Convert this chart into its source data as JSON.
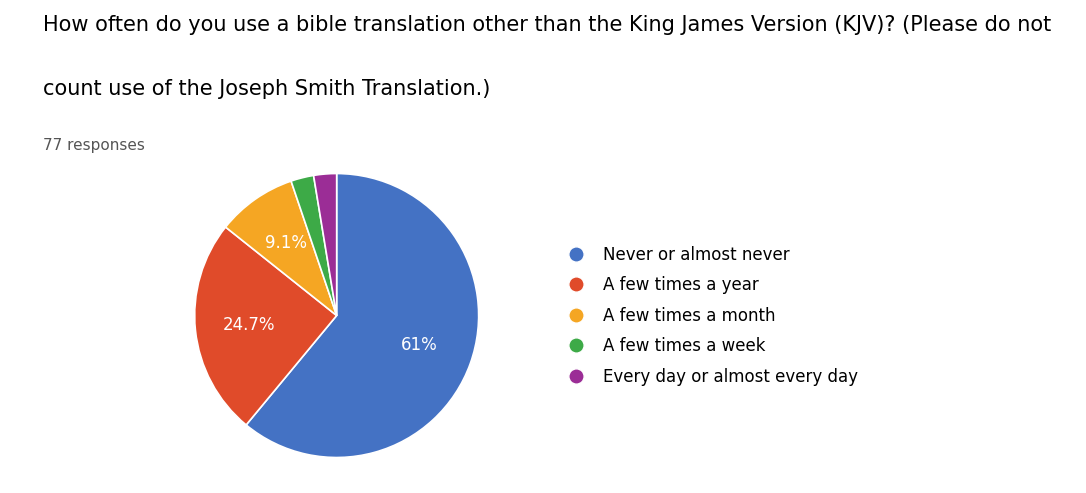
{
  "title_line1": "How often do you use a bible translation other than the King James Version (KJV)? (Please do not",
  "title_line2": "count use of the Joseph Smith Translation.)",
  "subtitle": "77 responses",
  "labels": [
    "Never or almost never",
    "A few times a year",
    "A few times a month",
    "A few times a week",
    "Every day or almost every day"
  ],
  "values": [
    61.0,
    24.7,
    9.1,
    2.6,
    2.6
  ],
  "colors": [
    "#4472C4",
    "#E04B2A",
    "#F5A623",
    "#3DAA47",
    "#9B2D96"
  ],
  "pct_labels": [
    "61%",
    "24.7%",
    "9.1%",
    "",
    ""
  ],
  "background_color": "#ffffff",
  "title_fontsize": 15,
  "subtitle_fontsize": 11,
  "legend_fontsize": 12
}
